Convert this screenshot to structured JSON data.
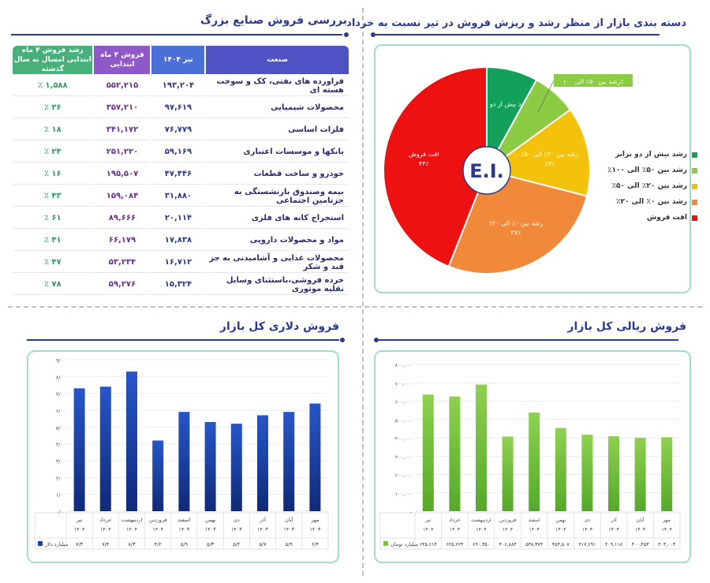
{
  "titles": {
    "industries": "بررسی فروش صنایع بزرگ",
    "pie": "دسته بندی بازار از منظر رشد و ریزش فروش در تیر نسبت به خرداد",
    "dollar": "فروش دلاری کل بازار",
    "rial": "فروش ریالی کل بازار"
  },
  "table": {
    "headers": [
      "صنعت",
      "تیر ۱۴۰۴",
      "فروش ۴ ماه ابتدایی",
      "رشد فروش ۴ ماه ابتدایی امسال به سال گذشته"
    ],
    "rows": [
      [
        "فراورده های نفتی، کک و سوخت هسته ای",
        "۱۹۳,۲۰۴",
        "۵۵۲,۲۱۵",
        "۱,۵۸۸ ٪"
      ],
      [
        "محصولات شیمیایی",
        "۹۷,۶۱۹",
        "۳۵۷,۲۱۰",
        "۳۶ ٪"
      ],
      [
        "فلزات اساسی",
        "۷۶,۷۷۹",
        "۳۴۱,۱۷۲",
        "۱۸ ٪"
      ],
      [
        "بانکها و موسسات اعتباری",
        "۵۹,۱۶۹",
        "۲۵۱,۲۲۰",
        "۲۴ ٪"
      ],
      [
        "خودرو و ساخت قطعات",
        "۴۷,۴۴۶",
        "۱۹۵,۵۰۷",
        "۱۶ ٪"
      ],
      [
        "بیمه وصندوق بازنشستگی به جزتامین اجتماعی",
        "۳۱,۸۸۰",
        "۱۵۹,۰۸۴",
        "۴۳ ٪"
      ],
      [
        "استخراج کانه های فلزی",
        "۲۰,۱۱۴",
        "۸۹,۶۶۶",
        "۶۱ ٪"
      ],
      [
        "مواد و محصولات دارویی",
        "۱۷,۸۳۸",
        "۶۶,۱۷۹",
        "۴۱ ٪"
      ],
      [
        "محصولات غذایی و آشامیدنی به جز قند و شکر",
        "۱۶,۷۱۲",
        "۵۳,۲۳۴",
        "۴۷ ٪"
      ],
      [
        "خرده فروشی،باستثنای وسایل نقلیه موتوری",
        "۱۵,۳۲۴",
        "۵۹,۲۷۶",
        "۷۸ ٪"
      ]
    ]
  },
  "pie_center": "E.I.",
  "chart_data": [
    {
      "type": "pie",
      "title": "دسته بندی بازار از منظر رشد و ریزش فروش در تیر نسبت به خرداد",
      "slices": [
        {
          "name": "رشد بیش از دو برابر",
          "label": "رشد بیش از دو برابر",
          "value": 8,
          "pct_label": "",
          "color": "#12a05a"
        },
        {
          "name": "رشد بین ۵۰٪ الی ۱۰۰٪",
          "label": "رشد بین ۵۰٪ الی ۱۰۰٪",
          "value": 7,
          "pct_label": "",
          "color": "#8ccc44"
        },
        {
          "name": "رشد بین ۲۰٪ الی ۵۰٪",
          "label": "رشد بین ۲۰٪ الی ۵۰٪",
          "value": 14,
          "pct_label": "۱۴٪",
          "color": "#f4c20d"
        },
        {
          "name": "رشد بین ۰٪ الی ۲۰٪",
          "label": "رشد بین ۰٪ الی ۲۰٪",
          "value": 27,
          "pct_label": "۲۷٪",
          "color": "#f08a3a"
        },
        {
          "name": "افت فروش",
          "label": "افت فروش",
          "value": 44,
          "pct_label": "۴۴٪",
          "color": "#ee1111"
        }
      ],
      "legend_position": "right"
    },
    {
      "type": "bar",
      "title": "فروش دلاری کل بازار",
      "categories": [
        "مهر ۱۴۰۳",
        "آبان ۱۴۰۳",
        "آذر ۱۴۰۳",
        "دی ۱۴۰۳",
        "بهمن ۱۴۰۳",
        "اسفند ۱۴۰۳",
        "فروردین ۱۴۰۴",
        "اردیبهشت ۱۴۰۴",
        "خرداد ۱۴۰۴",
        "تیر ۱۴۰۴"
      ],
      "values": [
        6.4,
        5.9,
        5.7,
        5.2,
        5.3,
        5.9,
        4.2,
        8.3,
        7.4,
        7.3
      ],
      "value_labels": [
        "۶/۴",
        "۵/۹",
        "۵/۷",
        "۵/۲",
        "۵/۳",
        "۵/۹",
        "۴/۲",
        "۸/۳",
        "۷/۴",
        "۷/۳"
      ],
      "series_name": "میلیارد دلار",
      "ylim": [
        0,
        9
      ],
      "yticks": [
        "۰/۰",
        "۱/۰",
        "۲/۰",
        "۳/۰",
        "۴/۰",
        "۵/۰",
        "۶/۰",
        "۷/۰",
        "۸/۰",
        "۹/۰"
      ],
      "color": "#1a3fa8",
      "grid": true
    },
    {
      "type": "bar",
      "title": "فروش ریالی کل بازار",
      "categories": [
        "مهر ۱۴۰۳",
        "آبان ۱۴۰۳",
        "آذر ۱۴۰۳",
        "دی ۱۴۰۳",
        "بهمن ۱۴۰۳",
        "اسفند ۱۴۰۳",
        "فروردین ۱۴۰۴",
        "اردیبهشت ۱۴۰۴",
        "خرداد ۱۴۰۴",
        "تیر ۱۴۰۴"
      ],
      "values": [
        403003,
        400453,
        409118,
        417691,
        453507,
        538374,
        406883,
        690350,
        625623,
        635614
      ],
      "value_labels": [
        "۴۰۳,۰۰۳",
        "۴۰۰,۴۵۳",
        "۴۰۹,۱۱۸",
        "۴۱۷,۶۹۱",
        "۴۵۳,۵۰۷",
        "۵۳۸,۳۷۴",
        "۴۰۶,۸۸۳",
        "۶۹۰,۳۵۰",
        "۶۲۵,۶۲۳",
        "۶۳۵,۶۱۴"
      ],
      "series_name": "میلیارد تومان",
      "ylim": [
        0,
        800000
      ],
      "yticks": [
        "-",
        "۱۰۰,۰۰۰",
        "۲۰۰,۰۰۰",
        "۳۰۰,۰۰۰",
        "۴۰۰,۰۰۰",
        "۵۰۰,۰۰۰",
        "۶۰۰,۰۰۰",
        "۷۰۰,۰۰۰",
        "۸۰۰,۰۰۰"
      ],
      "color": "#7dc242",
      "grid": true
    }
  ]
}
